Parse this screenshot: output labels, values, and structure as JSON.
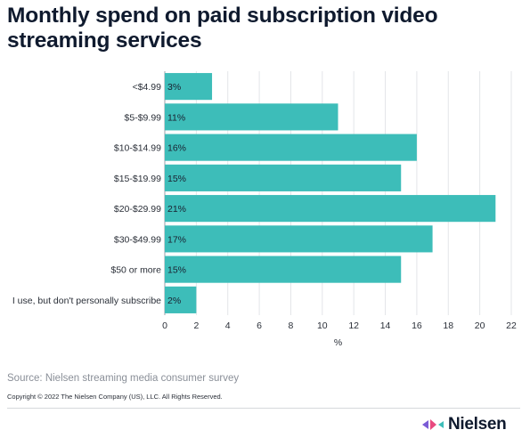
{
  "title": "Monthly spend on paid subscription video streaming services",
  "chart_data": {
    "type": "bar",
    "orientation": "horizontal",
    "categories": [
      "<$4.99",
      "$5-$9.99",
      "$10-$14.99",
      "$15-$19.99",
      "$20-$29.99",
      "$30-$49.99",
      "$50 or more",
      "I use, but don't personally subscribe"
    ],
    "values": [
      3,
      11,
      16,
      15,
      21,
      17,
      15,
      2
    ],
    "data_labels": [
      "3%",
      "11%",
      "16%",
      "15%",
      "21%",
      "17%",
      "15%",
      "2%"
    ],
    "xlabel": "%",
    "ylabel": "",
    "xlim": [
      0,
      22
    ],
    "xticks": [
      0,
      2,
      4,
      6,
      8,
      10,
      12,
      14,
      16,
      18,
      20,
      22
    ],
    "grid": "vertical",
    "bar_color": "#3dbdb9"
  },
  "source": "Source: Nielsen streaming media consumer survey",
  "copyright": "Copyright © 2022 The Nielsen Company (US), LLC. All Rights Reserved.",
  "logo": {
    "name": "Nielsen",
    "colors": [
      "#7b5cd6",
      "#e84a7f",
      "#3dbdb9"
    ]
  }
}
